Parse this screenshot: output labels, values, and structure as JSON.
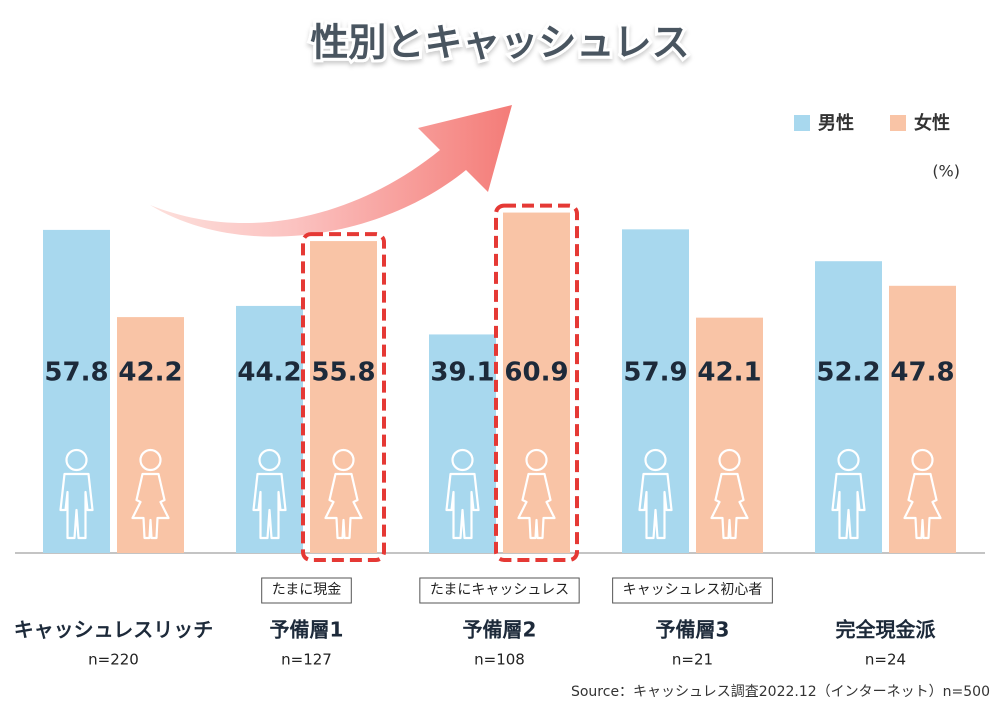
{
  "chart_data": {
    "type": "bar",
    "title": "性別とキャッシュレス",
    "unit": "(%)",
    "categories": [
      "キャッシュレスリッチ",
      "予備層1",
      "予備層2",
      "予備層3",
      "完全現金派"
    ],
    "category_counts": [
      "n=220",
      "n=127",
      "n=108",
      "n=21",
      "n=24"
    ],
    "category_notes": [
      null,
      "たまに現金",
      "たまにキャッシュレス",
      "キャッシュレス初心者",
      null
    ],
    "series": [
      {
        "name": "男性",
        "color": "#a8d8ee",
        "values": [
          57.8,
          44.2,
          39.1,
          57.9,
          52.2
        ]
      },
      {
        "name": "女性",
        "color": "#f9c4a6",
        "values": [
          42.2,
          55.8,
          60.9,
          42.1,
          47.8
        ]
      }
    ],
    "source": "Source：キャッシュレス調査2022.12（インターネット）n=500"
  }
}
